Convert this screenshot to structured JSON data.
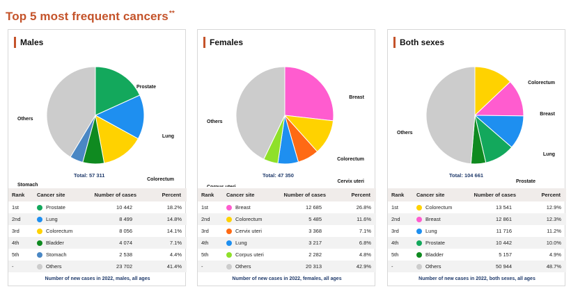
{
  "page_title": "Top 5 most frequent cancers",
  "page_title_mark": "**",
  "table_headers": {
    "rank": "Rank",
    "site": "Cancer site",
    "cases": "Number of cases",
    "percent": "Percent"
  },
  "colors": {
    "Prostate": "#13a85c",
    "Lung": "#1e8ff0",
    "Colorectum": "#ffd200",
    "Bladder": "#0f8a20",
    "Stomach": "#4a87c4",
    "Others": "#cccccc",
    "Breast": "#ff5ccf",
    "Cervix uteri": "#ff6a14",
    "Corpus uteri": "#8fe02a"
  },
  "chart_data": [
    {
      "type": "pie",
      "title": "Males",
      "total_label": "Total: 57 311",
      "caption": "Number of new cases in 2022, males, all ages",
      "slices": [
        {
          "rank": "1st",
          "label": "Prostate",
          "cases": "10 442",
          "value": 18.2,
          "percent": "18.2%"
        },
        {
          "rank": "2nd",
          "label": "Lung",
          "cases": "8 499",
          "value": 14.8,
          "percent": "14.8%"
        },
        {
          "rank": "3rd",
          "label": "Colorectum",
          "cases": "8 056",
          "value": 14.1,
          "percent": "14.1%"
        },
        {
          "rank": "4th",
          "label": "Bladder",
          "cases": "4 074",
          "value": 7.1,
          "percent": "7.1%"
        },
        {
          "rank": "5th",
          "label": "Stomach",
          "cases": "2 538",
          "value": 4.4,
          "percent": "4.4%"
        },
        {
          "rank": "-",
          "label": "Others",
          "cases": "23 702",
          "value": 41.4,
          "percent": "41.4%"
        }
      ]
    },
    {
      "type": "pie",
      "title": "Females",
      "total_label": "Total: 47 350",
      "caption": "Number of new cases in 2022, females, all ages",
      "slices": [
        {
          "rank": "1st",
          "label": "Breast",
          "cases": "12 685",
          "value": 26.8,
          "percent": "26.8%"
        },
        {
          "rank": "2nd",
          "label": "Colorectum",
          "cases": "5 485",
          "value": 11.6,
          "percent": "11.6%"
        },
        {
          "rank": "3rd",
          "label": "Cervix uteri",
          "cases": "3 368",
          "value": 7.1,
          "percent": "7.1%"
        },
        {
          "rank": "4th",
          "label": "Lung",
          "cases": "3 217",
          "value": 6.8,
          "percent": "6.8%"
        },
        {
          "rank": "5th",
          "label": "Corpus uteri",
          "cases": "2 282",
          "value": 4.8,
          "percent": "4.8%"
        },
        {
          "rank": "-",
          "label": "Others",
          "cases": "20 313",
          "value": 42.9,
          "percent": "42.9%"
        }
      ]
    },
    {
      "type": "pie",
      "title": "Both sexes",
      "total_label": "Total: 104 661",
      "caption": "Number of new cases in 2022, both sexes, all ages",
      "slices": [
        {
          "rank": "1st",
          "label": "Colorectum",
          "cases": "13 541",
          "value": 12.9,
          "percent": "12.9%"
        },
        {
          "rank": "2nd",
          "label": "Breast",
          "cases": "12 861",
          "value": 12.3,
          "percent": "12.3%"
        },
        {
          "rank": "3rd",
          "label": "Lung",
          "cases": "11 716",
          "value": 11.2,
          "percent": "11.2%"
        },
        {
          "rank": "4th",
          "label": "Prostate",
          "cases": "10 442",
          "value": 10.0,
          "percent": "10.0%"
        },
        {
          "rank": "5th",
          "label": "Bladder",
          "cases": "5 157",
          "value": 4.9,
          "percent": "4.9%"
        },
        {
          "rank": "-",
          "label": "Others",
          "cases": "50 944",
          "value": 48.7,
          "percent": "48.7%"
        }
      ]
    }
  ]
}
